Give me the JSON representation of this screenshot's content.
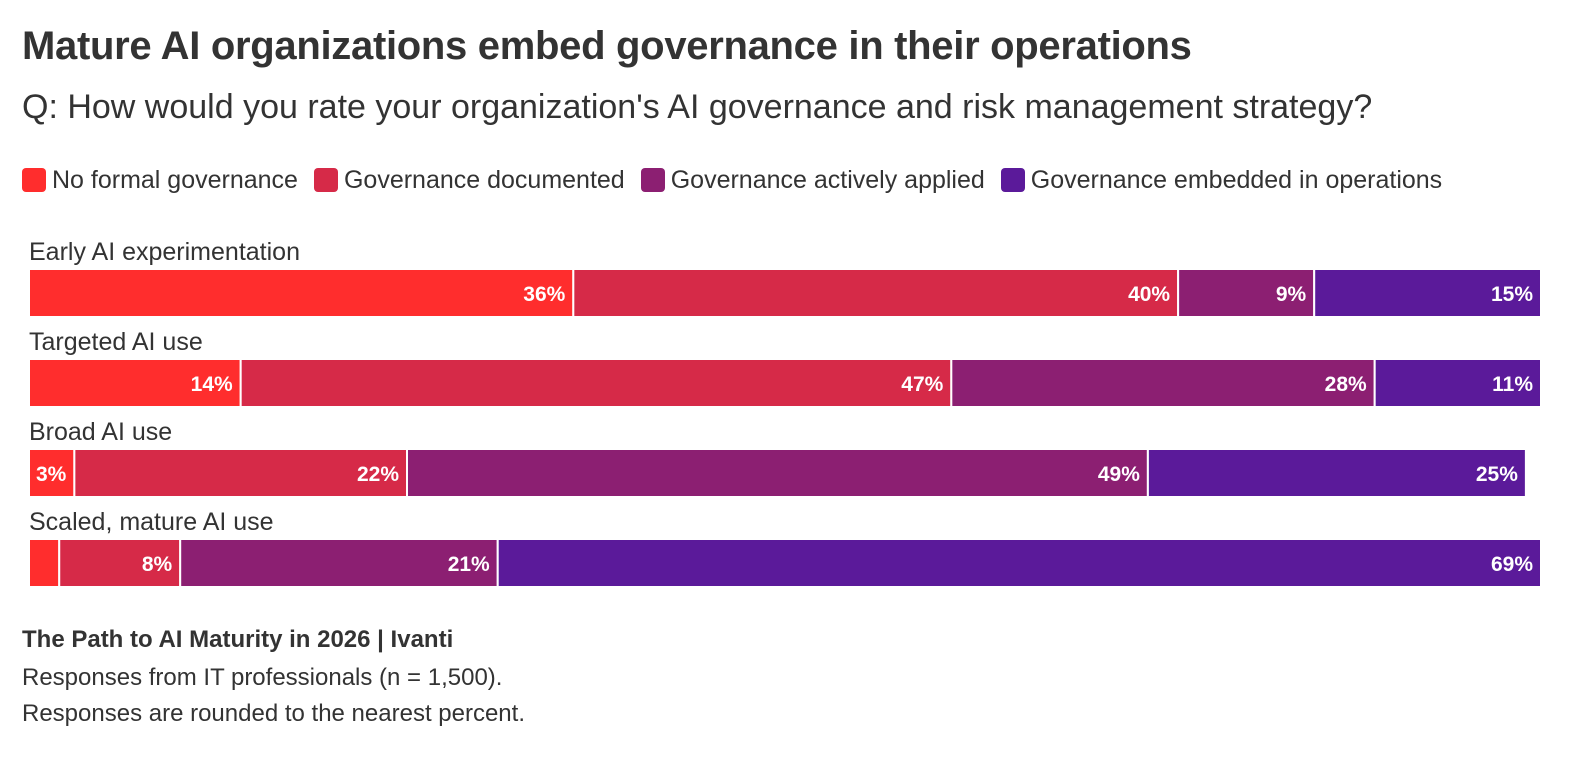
{
  "chart_data": {
    "type": "bar",
    "orientation": "horizontal",
    "stacked": true,
    "title": "Mature AI organizations embed governance in their operations",
    "subtitle": "Q: How would you rate your organization's AI governance and risk management strategy?",
    "categories": [
      "Early AI experimentation",
      "Targeted AI use",
      "Broad AI use",
      "Scaled, mature AI use"
    ],
    "series": [
      {
        "name": "No formal governance",
        "color": "#ff2d2d",
        "values": [
          36,
          14,
          3,
          2
        ]
      },
      {
        "name": "Governance documented",
        "color": "#d62a48",
        "values": [
          40,
          47,
          22,
          8
        ]
      },
      {
        "name": "Governance actively applied",
        "color": "#8c1f72",
        "values": [
          9,
          28,
          49,
          21
        ]
      },
      {
        "name": "Governance embedded in operations",
        "color": "#5b1a9a",
        "values": [
          15,
          11,
          25,
          69
        ]
      }
    ],
    "value_labels": [
      [
        "36%",
        "40%",
        "9%",
        "15%"
      ],
      [
        "14%",
        "47%",
        "28%",
        "11%"
      ],
      [
        "3%",
        "22%",
        "49%",
        "25%"
      ],
      [
        "",
        "8%",
        "21%",
        "69%"
      ]
    ],
    "xlim": [
      0,
      100
    ],
    "legend_position": "top",
    "grid": false
  },
  "footer": {
    "source": "The Path to AI Maturity in 2026 | Ivanti",
    "note1": "Responses from IT professionals (n = 1,500).",
    "note2": "Responses are rounded to the nearest percent."
  }
}
